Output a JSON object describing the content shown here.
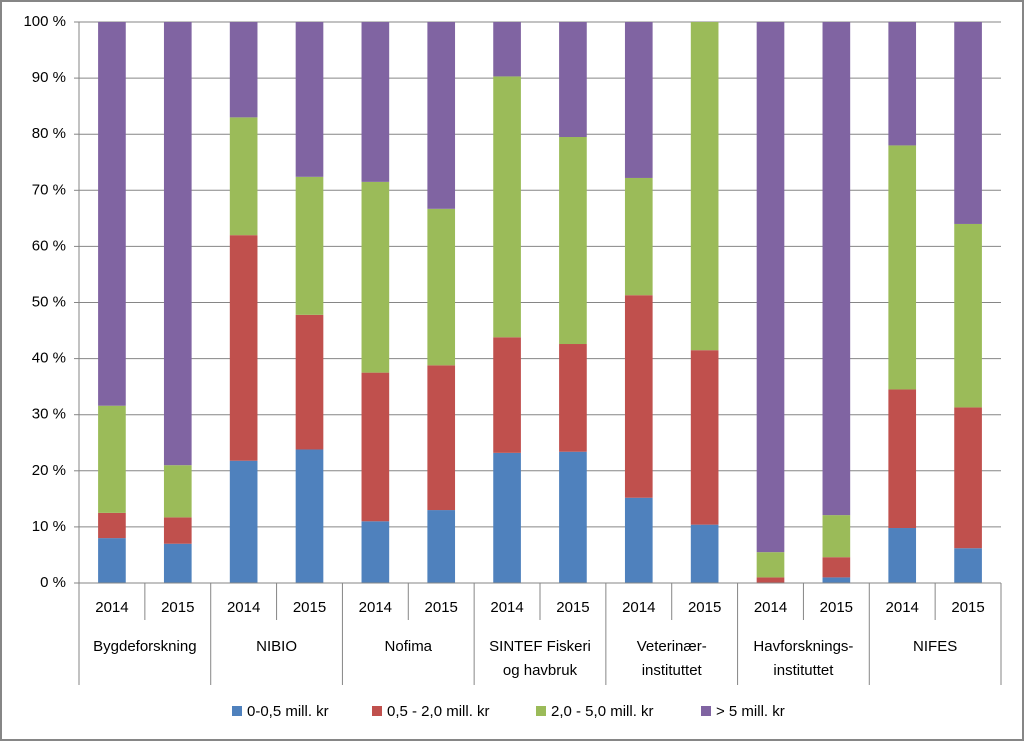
{
  "chart_data": {
    "type": "stacked_bar_100",
    "categories": [
      "2014",
      "2015",
      "2014",
      "2015",
      "2014",
      "2015",
      "2014",
      "2015",
      "2014",
      "2015",
      "2014",
      "2015",
      "2014",
      "2015"
    ],
    "groups": [
      [
        "Bygdeforskning"
      ],
      [
        "NIBIO"
      ],
      [
        "Nofima"
      ],
      [
        "SINTEF Fiskeri",
        "og havbruk"
      ],
      [
        "Veterinær-",
        "instituttet"
      ],
      [
        "Havforsknings-",
        "instituttet"
      ],
      [
        "NIFES"
      ]
    ],
    "series": [
      {
        "name": "0-0,5 mill. kr",
        "color": "#4f81bd",
        "values": [
          8,
          7,
          21.8,
          23.8,
          11,
          13,
          23.2,
          23.4,
          15.2,
          10.4,
          0,
          1,
          9.8,
          6.2
        ]
      },
      {
        "name": "0,5 - 2,0 mill. kr",
        "color": "#c0504d",
        "values": [
          4.5,
          4.7,
          40.2,
          24,
          26.5,
          25.8,
          20.6,
          19.2,
          36.1,
          31.1,
          1,
          3.6,
          24.7,
          25.1
        ]
      },
      {
        "name": "2,0 - 5,0 mill. kr",
        "color": "#9bbb59",
        "values": [
          19.1,
          9.3,
          21,
          24.6,
          34,
          27.9,
          46.5,
          36.9,
          20.9,
          58.5,
          4.5,
          7.5,
          43.5,
          32.7
        ]
      },
      {
        "name": "> 5 mill. kr",
        "color": "#8064a2",
        "values": [
          68.4,
          79,
          17,
          27.6,
          28.5,
          33.3,
          9.7,
          20.5,
          27.8,
          0,
          94.5,
          87.9,
          22,
          36
        ]
      }
    ],
    "ylim": [
      0,
      100
    ],
    "yticks": [
      {
        "value": 0,
        "label": "0 %"
      },
      {
        "value": 10,
        "label": "10 %"
      },
      {
        "value": 20,
        "label": "20 %"
      },
      {
        "value": 30,
        "label": "30 %"
      },
      {
        "value": 40,
        "label": "40 %"
      },
      {
        "value": 50,
        "label": "50 %"
      },
      {
        "value": 60,
        "label": "60 %"
      },
      {
        "value": 70,
        "label": "70 %"
      },
      {
        "value": 80,
        "label": "80 %"
      },
      {
        "value": 90,
        "label": "90 %"
      },
      {
        "value": 100,
        "label": "100 %"
      }
    ],
    "grid": true,
    "legend": "bottom"
  }
}
